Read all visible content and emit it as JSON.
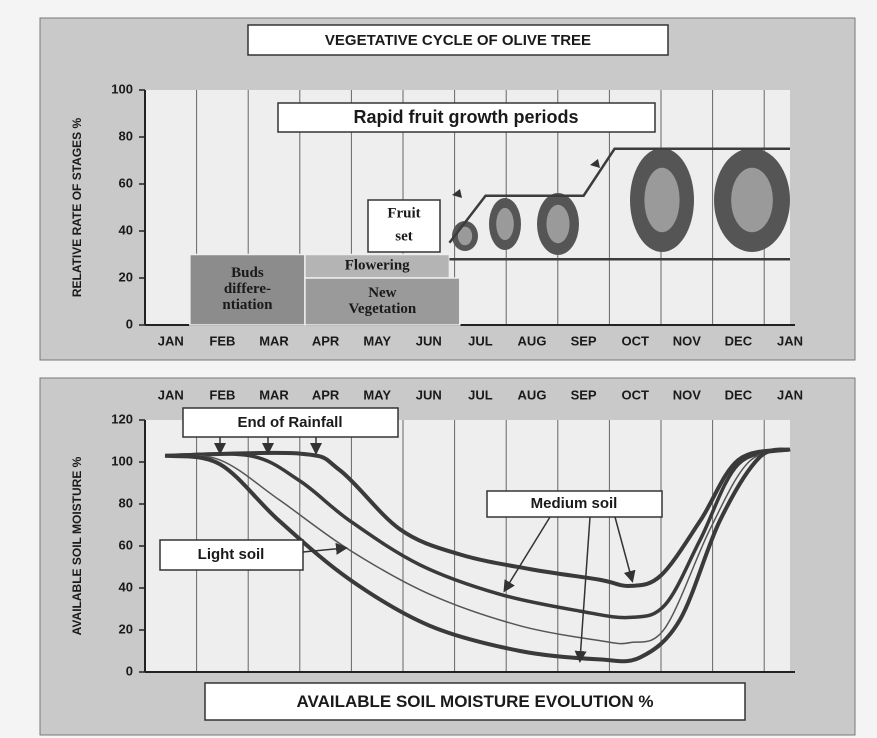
{
  "chart_data": [
    {
      "type": "stages",
      "title": "VEGETATIVE CYCLE OF OLIVE TREE",
      "y_label": "RELATIVE RATE OF STAGES %",
      "xlim": [
        0,
        12.5
      ],
      "xticks": [
        {
          "value": 0.5,
          "label": "JAN"
        },
        {
          "value": 1.5,
          "label": "FEB"
        },
        {
          "value": 2.5,
          "label": "MAR"
        },
        {
          "value": 3.5,
          "label": "APR"
        },
        {
          "value": 4.5,
          "label": "MAY"
        },
        {
          "value": 5.5,
          "label": "JUN"
        },
        {
          "value": 6.5,
          "label": "JUL"
        },
        {
          "value": 7.5,
          "label": "AUG"
        },
        {
          "value": 8.5,
          "label": "SEP"
        },
        {
          "value": 9.5,
          "label": "OCT"
        },
        {
          "value": 10.5,
          "label": "NOV"
        },
        {
          "value": 11.5,
          "label": "DEC"
        },
        {
          "value": 12.5,
          "label": "JAN"
        }
      ],
      "ylim": [
        0,
        100
      ],
      "yticks": [
        0,
        20,
        40,
        60,
        80,
        100
      ],
      "stages": [
        {
          "label": [
            "Buds",
            "differe-",
            "ntiation"
          ],
          "x": [
            0.87,
            3.1
          ],
          "y": [
            0,
            30
          ],
          "color": "#8c8c8c"
        },
        {
          "label": [
            "Flowering"
          ],
          "x": [
            3.1,
            5.9
          ],
          "y": [
            20,
            30
          ],
          "color": "#b4b4b4"
        },
        {
          "label": [
            "New",
            "Vegetation"
          ],
          "x": [
            3.1,
            6.1
          ],
          "y": [
            0,
            20
          ],
          "color": "#9a9a9a"
        }
      ],
      "annotations": [
        "Rapid fruit growth periods",
        [
          "Fruit",
          "set"
        ]
      ],
      "lines": [
        {
          "x": [
            5.9,
            6.6,
            8.5,
            9.1,
            12.5
          ],
          "values": [
            35,
            55,
            55,
            75,
            75
          ],
          "color": "#3c3c3c"
        },
        {
          "x": [
            5.9,
            12.5
          ],
          "values": [
            28,
            28
          ],
          "color": "#3c3c3c"
        }
      ]
    },
    {
      "type": "line",
      "title": "AVAILABLE SOIL MOISTURE EVOLUTION %",
      "y_label": "AVAILABLE SOIL MOISTURE %",
      "xlim": [
        0,
        12.5
      ],
      "xticks": [
        {
          "value": 0.5,
          "label": "JAN"
        },
        {
          "value": 1.5,
          "label": "FEB"
        },
        {
          "value": 2.5,
          "label": "MAR"
        },
        {
          "value": 3.5,
          "label": "APR"
        },
        {
          "value": 4.5,
          "label": "MAY"
        },
        {
          "value": 5.5,
          "label": "JUN"
        },
        {
          "value": 6.5,
          "label": "JUL"
        },
        {
          "value": 7.5,
          "label": "AUG"
        },
        {
          "value": 8.5,
          "label": "SEP"
        },
        {
          "value": 9.5,
          "label": "OCT"
        },
        {
          "value": 10.5,
          "label": "NOV"
        },
        {
          "value": 11.5,
          "label": "DEC"
        },
        {
          "value": 12.5,
          "label": "JAN"
        }
      ],
      "ylim": [
        0,
        120
      ],
      "yticks": [
        0,
        20,
        40,
        60,
        80,
        100,
        120
      ],
      "annotations": [
        "End of Rainfall",
        "Medium soil",
        "Light soil"
      ],
      "series": [
        {
          "color": "#3a3a3a",
          "x": [
            0.39,
            3.0,
            3.78,
            4.94,
            6.1,
            7.46,
            8.8,
            9.4,
            10.0,
            10.76,
            11.5,
            12.5
          ],
          "values": [
            103,
            104,
            96,
            68,
            56,
            49,
            44,
            41,
            46,
            72,
            101,
            106
          ]
        },
        {
          "color": "#3a3a3a",
          "x": [
            0.39,
            2.03,
            3.0,
            3.97,
            5.33,
            6.88,
            8.43,
            9.4,
            10.08,
            10.76,
            11.5,
            12.5
          ],
          "values": [
            103,
            103,
            91,
            72,
            51,
            37,
            29,
            26,
            32,
            63,
            99,
            106
          ]
        },
        {
          "color": "#555555",
          "x": [
            0.39,
            1.45,
            2.6,
            3.97,
            5.52,
            7.27,
            8.8,
            9.4,
            10.08,
            10.95,
            11.7,
            12.5
          ],
          "values": [
            103,
            101,
            82,
            58,
            37,
            22,
            15,
            14,
            21,
            68,
            100,
            106
          ]
        },
        {
          "color": "#3a3a3a",
          "x": [
            0.39,
            1.45,
            2.6,
            3.97,
            5.52,
            7.27,
            8.8,
            9.6,
            10.37,
            11.14,
            11.9,
            12.5
          ],
          "values": [
            103,
            99,
            72,
            44,
            22,
            10,
            6,
            7,
            25,
            72,
            102,
            106
          ]
        }
      ]
    }
  ]
}
